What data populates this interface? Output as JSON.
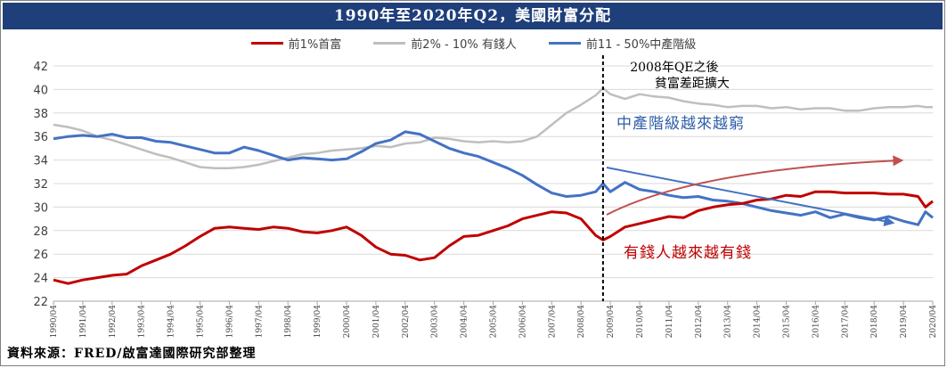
{
  "title": "1990年至2020年Q2，美國財富分配",
  "source": "資料來源：FRED/啟富達國際研究部整理",
  "colors": {
    "top1": "#c00000",
    "next9": "#bfbfbf",
    "middle": "#4472c4",
    "title_bg": "#1f3f7a"
  },
  "chart_data": {
    "type": "line",
    "ylim": [
      22,
      42
    ],
    "yticks": [
      22,
      24,
      26,
      28,
      30,
      32,
      34,
      36,
      38,
      40,
      42
    ],
    "x_start": "1990/04",
    "x_end": "2020/04",
    "xticks": [
      "1990/04",
      "1991/04",
      "1992/04",
      "1993/04",
      "1994/04",
      "1995/04",
      "1996/04",
      "1997/04",
      "1998/04",
      "1999/04",
      "2000/04",
      "2001/04",
      "2002/04",
      "2003/04",
      "2004/04",
      "2005/04",
      "2006/04",
      "2007/04",
      "2008/04",
      "2009/04",
      "2010/04",
      "2011/04",
      "2012/04",
      "2013/04",
      "2014/04",
      "2015/04",
      "2016/04",
      "2017/04",
      "2018/04",
      "2019/04",
      "2020/04"
    ],
    "grid": "horizontal",
    "legend": "top",
    "series": [
      {
        "name": "前1%首富",
        "color": "#c00000",
        "x": [
          "1990/04",
          "1990/10",
          "1991/04",
          "1991/10",
          "1992/04",
          "1992/10",
          "1993/04",
          "1993/10",
          "1994/04",
          "1994/10",
          "1995/04",
          "1995/10",
          "1996/04",
          "1996/10",
          "1997/04",
          "1997/10",
          "1998/04",
          "1998/10",
          "1999/04",
          "1999/10",
          "2000/04",
          "2000/10",
          "2001/04",
          "2001/10",
          "2002/04",
          "2002/10",
          "2003/04",
          "2003/10",
          "2004/04",
          "2004/10",
          "2005/04",
          "2005/10",
          "2006/04",
          "2006/10",
          "2007/04",
          "2007/10",
          "2008/04",
          "2008/10",
          "2009/01",
          "2009/04",
          "2009/10",
          "2010/04",
          "2010/10",
          "2011/04",
          "2011/10",
          "2012/04",
          "2012/10",
          "2013/04",
          "2013/10",
          "2014/04",
          "2014/10",
          "2015/04",
          "2015/10",
          "2016/04",
          "2016/10",
          "2017/04",
          "2017/10",
          "2018/04",
          "2018/10",
          "2019/04",
          "2019/10",
          "2020/01",
          "2020/04"
        ],
        "values": [
          23.8,
          23.5,
          23.8,
          24.0,
          24.2,
          24.3,
          25.0,
          25.5,
          26.0,
          26.7,
          27.5,
          28.2,
          28.3,
          28.2,
          28.1,
          28.3,
          28.2,
          27.9,
          27.8,
          28.0,
          28.3,
          27.6,
          26.6,
          26.0,
          25.9,
          25.5,
          25.7,
          26.7,
          27.5,
          27.6,
          28.0,
          28.4,
          29.0,
          29.3,
          29.6,
          29.5,
          29.0,
          27.6,
          27.2,
          27.5,
          28.3,
          28.6,
          28.9,
          29.2,
          29.1,
          29.7,
          30.0,
          30.2,
          30.3,
          30.6,
          30.7,
          31.0,
          30.9,
          31.3,
          31.3,
          31.2,
          31.2,
          31.2,
          31.1,
          31.1,
          30.9,
          30.0,
          30.5
        ]
      },
      {
        "name": "前2% - 10% 有錢人",
        "color": "#bfbfbf",
        "x": [
          "1990/04",
          "1990/10",
          "1991/04",
          "1991/10",
          "1992/04",
          "1992/10",
          "1993/04",
          "1993/10",
          "1994/04",
          "1994/10",
          "1995/04",
          "1995/10",
          "1996/04",
          "1996/10",
          "1997/04",
          "1997/10",
          "1998/04",
          "1998/10",
          "1999/04",
          "1999/10",
          "2000/04",
          "2000/10",
          "2001/04",
          "2001/10",
          "2002/04",
          "2002/10",
          "2003/04",
          "2003/10",
          "2004/04",
          "2004/10",
          "2005/04",
          "2005/10",
          "2006/04",
          "2006/10",
          "2007/04",
          "2007/10",
          "2008/04",
          "2008/10",
          "2009/01",
          "2009/04",
          "2009/10",
          "2010/04",
          "2010/10",
          "2011/04",
          "2011/10",
          "2012/04",
          "2012/10",
          "2013/04",
          "2013/10",
          "2014/04",
          "2014/10",
          "2015/04",
          "2015/10",
          "2016/04",
          "2016/10",
          "2017/04",
          "2017/10",
          "2018/04",
          "2018/10",
          "2019/04",
          "2019/10",
          "2020/01",
          "2020/04"
        ],
        "values": [
          37.0,
          36.8,
          36.5,
          36.0,
          35.7,
          35.3,
          34.9,
          34.5,
          34.2,
          33.8,
          33.4,
          33.3,
          33.3,
          33.4,
          33.6,
          33.9,
          34.2,
          34.5,
          34.6,
          34.8,
          34.9,
          35.0,
          35.2,
          35.1,
          35.4,
          35.5,
          35.9,
          35.8,
          35.6,
          35.5,
          35.6,
          35.5,
          35.6,
          36.0,
          37.0,
          38.0,
          38.7,
          39.5,
          40.1,
          39.6,
          39.2,
          39.6,
          39.4,
          39.3,
          39.0,
          38.8,
          38.7,
          38.5,
          38.6,
          38.6,
          38.4,
          38.5,
          38.3,
          38.4,
          38.4,
          38.2,
          38.2,
          38.4,
          38.5,
          38.5,
          38.6,
          38.5,
          38.5
        ]
      },
      {
        "name": "前11 - 50%中產階級",
        "color": "#4472c4",
        "x": [
          "1990/04",
          "1990/10",
          "1991/04",
          "1991/10",
          "1992/04",
          "1992/10",
          "1993/04",
          "1993/10",
          "1994/04",
          "1994/10",
          "1995/04",
          "1995/10",
          "1996/04",
          "1996/10",
          "1997/04",
          "1997/10",
          "1998/04",
          "1998/10",
          "1999/04",
          "1999/10",
          "2000/04",
          "2000/10",
          "2001/04",
          "2001/10",
          "2002/04",
          "2002/10",
          "2003/04",
          "2003/10",
          "2004/04",
          "2004/10",
          "2005/04",
          "2005/10",
          "2006/04",
          "2006/10",
          "2007/04",
          "2007/10",
          "2008/04",
          "2008/10",
          "2009/01",
          "2009/04",
          "2009/10",
          "2010/04",
          "2010/10",
          "2011/04",
          "2011/10",
          "2012/04",
          "2012/10",
          "2013/04",
          "2013/10",
          "2014/04",
          "2014/10",
          "2015/04",
          "2015/10",
          "2016/04",
          "2016/10",
          "2017/04",
          "2017/10",
          "2018/04",
          "2018/10",
          "2019/04",
          "2019/10",
          "2020/01",
          "2020/04"
        ],
        "values": [
          35.8,
          36.0,
          36.1,
          36.0,
          36.2,
          35.9,
          35.9,
          35.6,
          35.5,
          35.2,
          34.9,
          34.6,
          34.6,
          35.1,
          34.8,
          34.4,
          34.0,
          34.2,
          34.1,
          34.0,
          34.1,
          34.7,
          35.4,
          35.7,
          36.4,
          36.2,
          35.6,
          35.0,
          34.6,
          34.3,
          33.8,
          33.3,
          32.7,
          31.9,
          31.2,
          30.9,
          31.0,
          31.3,
          32.0,
          31.3,
          32.1,
          31.5,
          31.3,
          31.0,
          30.8,
          30.9,
          30.6,
          30.5,
          30.3,
          30.0,
          29.7,
          29.5,
          29.3,
          29.6,
          29.1,
          29.4,
          29.1,
          28.9,
          29.2,
          28.8,
          28.5,
          29.6,
          29.1
        ]
      }
    ],
    "annotations": [
      {
        "text_line1": "2008年QE之後",
        "text_line2": "貧富差距擴大",
        "at": "2009/01",
        "style": "dashed-vertical-line"
      },
      {
        "text": "中產階級越來越窮",
        "color": "#2e5fa8"
      },
      {
        "text": "有錢人越來越有錢",
        "color": "#c00000"
      }
    ]
  }
}
